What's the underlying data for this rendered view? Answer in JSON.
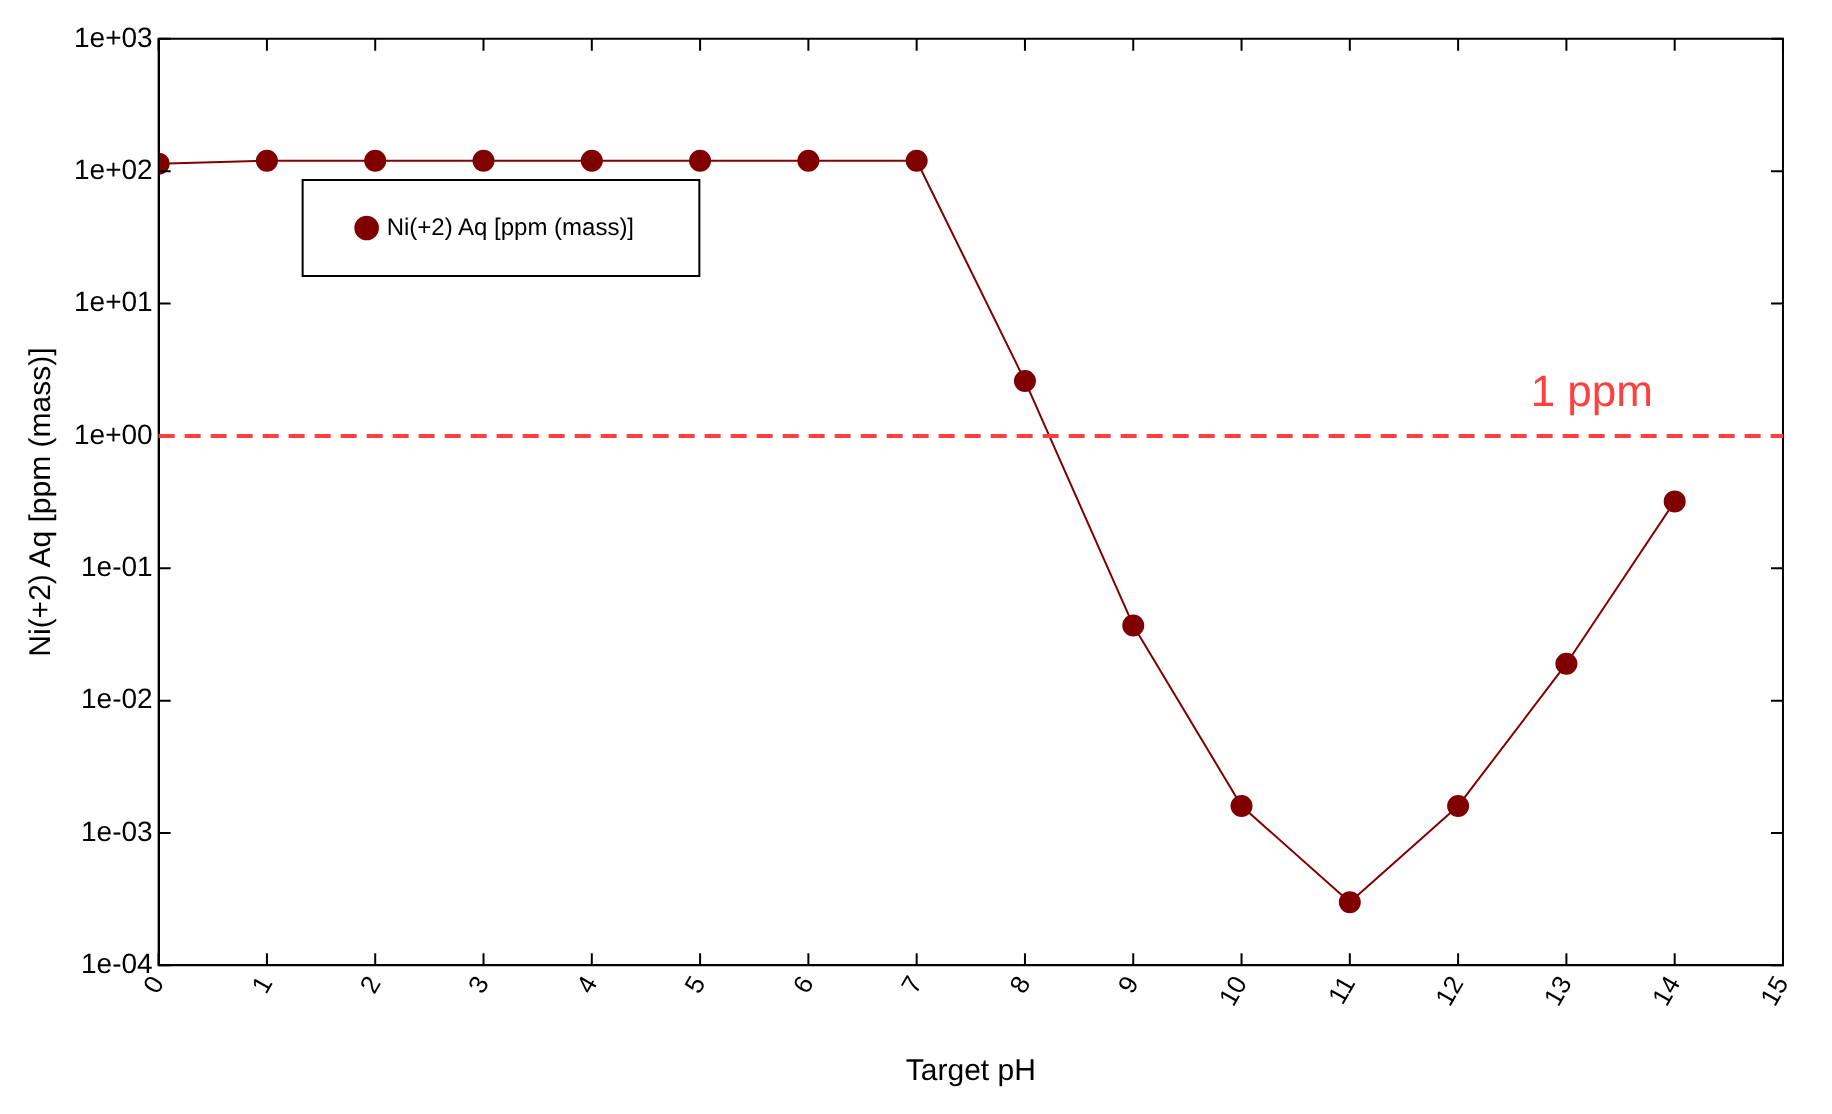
{
  "chart_data": {
    "type": "line",
    "xlabel": "Target pH",
    "ylabel": "Ni(+2) Aq [ppm (mass)]",
    "x": [
      0,
      1,
      2,
      3,
      4,
      5,
      6,
      7,
      8,
      9,
      10,
      11,
      12,
      13,
      14
    ],
    "series": [
      {
        "name": "Ni(+2) Aq [ppm (mass)]",
        "color": "#800000",
        "values": [
          114,
          120,
          120,
          120,
          120,
          120,
          120,
          120,
          2.6,
          0.037,
          0.0016,
          0.0003,
          0.0016,
          0.019,
          0.32
        ]
      }
    ],
    "xlim": [
      0,
      15
    ],
    "xticks": [
      0,
      1,
      2,
      3,
      4,
      5,
      6,
      7,
      8,
      9,
      10,
      11,
      12,
      13,
      14,
      15
    ],
    "ylim": [
      0.0001,
      1000
    ],
    "yticks": [
      {
        "value": 0.0001,
        "label": "1e-04"
      },
      {
        "value": 0.001,
        "label": "1e-03"
      },
      {
        "value": 0.01,
        "label": "1e-02"
      },
      {
        "value": 0.1,
        "label": "1e-01"
      },
      {
        "value": 1,
        "label": "1e+00"
      },
      {
        "value": 10,
        "label": "1e+01"
      },
      {
        "value": 100,
        "label": "1e+02"
      },
      {
        "value": 1000,
        "label": "1e+03"
      }
    ],
    "log": "y",
    "grid": false,
    "legend": "top left",
    "marker": "circle",
    "line_style": "solid",
    "ref_lines": [
      {
        "axis": "y",
        "value": 1,
        "label": "1 ppm",
        "color": "#ff4040",
        "line_style": "dashed"
      }
    ]
  }
}
